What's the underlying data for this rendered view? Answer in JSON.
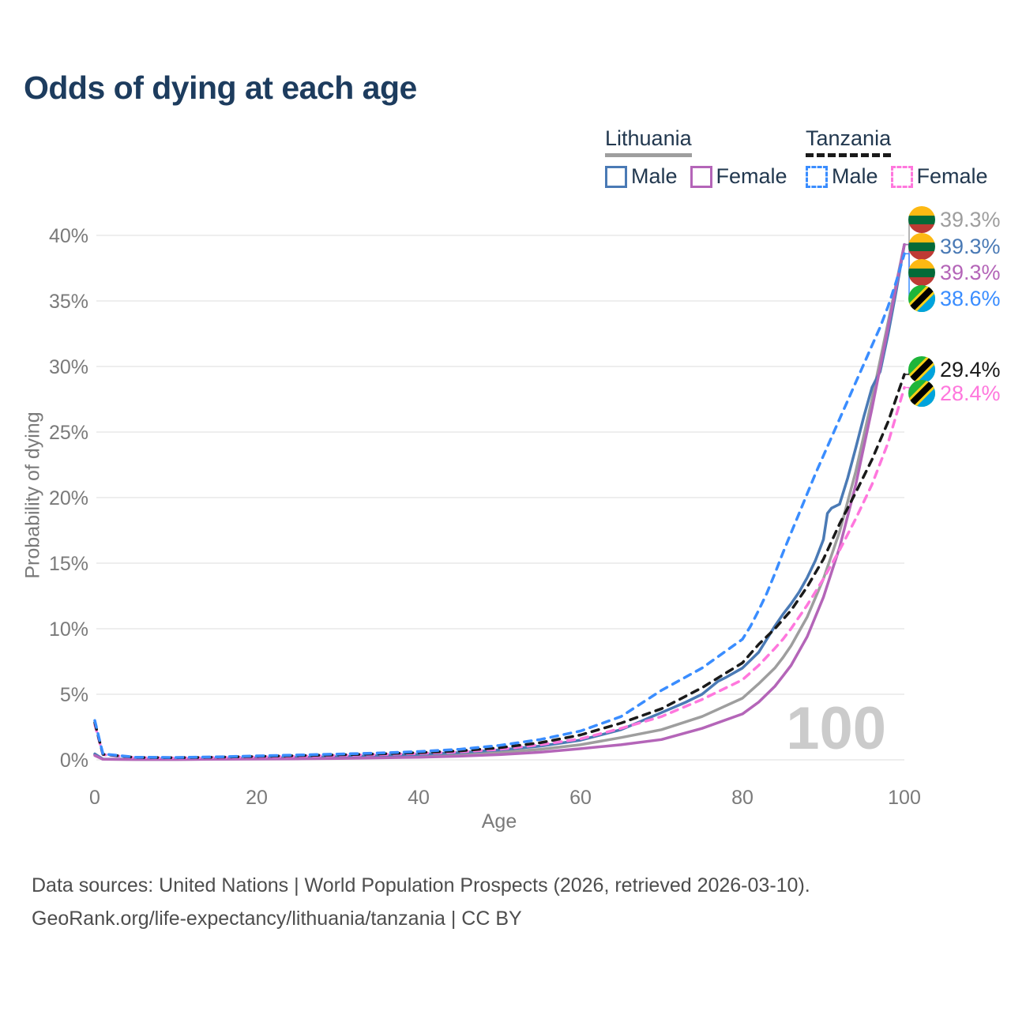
{
  "title": "Odds of dying at each age",
  "watermark": "100",
  "legend": {
    "groups": [
      {
        "country": "Lithuania",
        "line_style": "solid",
        "line_color": "#9e9e9e",
        "items": [
          {
            "label": "Male",
            "color": "#4a7ab5",
            "box_style": "solid"
          },
          {
            "label": "Female",
            "color": "#b465b8",
            "box_style": "solid"
          }
        ]
      },
      {
        "country": "Tanzania",
        "line_style": "dashed",
        "line_color": "#1a1a1a",
        "items": [
          {
            "label": "Male",
            "color": "#3a8dff",
            "box_style": "dashed"
          },
          {
            "label": "Female",
            "color": "#ff77dd",
            "box_style": "dashed"
          }
        ]
      }
    ]
  },
  "end_labels": [
    {
      "value": "39.3%",
      "flag": "lithuania",
      "color": "#9e9e9e"
    },
    {
      "value": "39.3%",
      "flag": "lithuania",
      "color": "#4a7ab5"
    },
    {
      "value": "39.3%",
      "flag": "lithuania",
      "color": "#b465b8"
    },
    {
      "value": "38.6%",
      "flag": "tanzania",
      "color": "#3a8dff"
    },
    {
      "value": "29.4%",
      "flag": "tanzania",
      "color": "#1a1a1a"
    },
    {
      "value": "28.4%",
      "flag": "tanzania",
      "color": "#ff77dd"
    }
  ],
  "footer": {
    "line1": "Data sources: United Nations | World Population Prospects (2026, retrieved 2026-03-10).",
    "line2": "GeoRank.org/life-expectancy/lithuania/tanzania | CC BY"
  },
  "chart_data": {
    "type": "line",
    "title": "Odds of dying at each age",
    "xlabel": "Age",
    "ylabel": "Probability of dying",
    "xlim": [
      0,
      100
    ],
    "ylim_pct": [
      0,
      42
    ],
    "grid": true,
    "legend_position": "top-right",
    "x_ticks": [
      {
        "value": 0,
        "label": "0"
      },
      {
        "value": 20,
        "label": "20"
      },
      {
        "value": 40,
        "label": "40"
      },
      {
        "value": 60,
        "label": "60"
      },
      {
        "value": 80,
        "label": "80"
      },
      {
        "value": 100,
        "label": "100"
      }
    ],
    "y_ticks": [
      {
        "value": 0,
        "label": "0%"
      },
      {
        "value": 5,
        "label": "5%"
      },
      {
        "value": 10,
        "label": "10%"
      },
      {
        "value": 15,
        "label": "15%"
      },
      {
        "value": 20,
        "label": "20%"
      },
      {
        "value": 25,
        "label": "25%"
      },
      {
        "value": 30,
        "label": "30%"
      },
      {
        "value": 35,
        "label": "35%"
      },
      {
        "value": 40,
        "label": "40%"
      }
    ],
    "series": [
      {
        "id": "lithuania-combined",
        "name": "Lithuania (both sexes)",
        "country": "Lithuania",
        "sex": "combined",
        "line_style": "solid",
        "color": "#9e9e9e",
        "end_value_pct": 39.3,
        "end_label_index": 0,
        "points": [
          [
            0,
            0.4
          ],
          [
            1,
            0.05
          ],
          [
            5,
            0.03
          ],
          [
            10,
            0.03
          ],
          [
            15,
            0.055
          ],
          [
            20,
            0.09
          ],
          [
            25,
            0.13
          ],
          [
            30,
            0.17
          ],
          [
            35,
            0.23
          ],
          [
            40,
            0.3
          ],
          [
            45,
            0.41
          ],
          [
            50,
            0.57
          ],
          [
            55,
            0.8
          ],
          [
            60,
            1.15
          ],
          [
            65,
            1.7
          ],
          [
            70,
            2.3
          ],
          [
            75,
            3.3
          ],
          [
            80,
            4.7
          ],
          [
            82,
            5.8
          ],
          [
            84,
            7.0
          ],
          [
            85,
            7.8
          ],
          [
            86,
            8.7
          ],
          [
            88,
            10.9
          ],
          [
            90,
            13.8
          ],
          [
            92,
            17.4
          ],
          [
            94,
            22.0
          ],
          [
            96,
            27.5
          ],
          [
            98,
            33.4
          ],
          [
            100,
            39.3
          ]
        ]
      },
      {
        "id": "lithuania-male",
        "name": "Lithuania Male",
        "country": "Lithuania",
        "sex": "male",
        "line_style": "solid",
        "color": "#4a7ab5",
        "end_value_pct": 39.3,
        "end_label_index": 1,
        "points": [
          [
            0,
            0.45
          ],
          [
            1,
            0.06
          ],
          [
            5,
            0.04
          ],
          [
            10,
            0.04
          ],
          [
            15,
            0.07
          ],
          [
            20,
            0.13
          ],
          [
            25,
            0.18
          ],
          [
            30,
            0.24
          ],
          [
            35,
            0.32
          ],
          [
            40,
            0.42
          ],
          [
            45,
            0.55
          ],
          [
            50,
            0.75
          ],
          [
            55,
            1.05
          ],
          [
            60,
            1.5
          ],
          [
            65,
            2.3
          ],
          [
            70,
            3.6
          ],
          [
            73,
            4.4
          ],
          [
            75,
            5.0
          ],
          [
            77,
            6.0
          ],
          [
            78,
            6.3
          ],
          [
            80,
            7.0
          ],
          [
            81,
            7.6
          ],
          [
            82,
            8.2
          ],
          [
            83,
            9.2
          ],
          [
            84,
            10.2
          ],
          [
            85,
            11.1
          ],
          [
            86,
            11.9
          ],
          [
            87,
            12.8
          ],
          [
            88,
            13.9
          ],
          [
            89,
            15.2
          ],
          [
            90,
            16.8
          ],
          [
            90.5,
            18.8
          ],
          [
            91,
            19.2
          ],
          [
            92,
            19.5
          ],
          [
            93,
            21.5
          ],
          [
            94,
            23.8
          ],
          [
            95,
            26.2
          ],
          [
            96,
            28.4
          ],
          [
            97,
            29.6
          ],
          [
            98,
            32.5
          ],
          [
            99,
            35.8
          ],
          [
            100,
            39.3
          ]
        ]
      },
      {
        "id": "lithuania-female",
        "name": "Lithuania Female",
        "country": "Lithuania",
        "sex": "female",
        "line_style": "solid",
        "color": "#b465b8",
        "end_value_pct": 39.3,
        "end_label_index": 2,
        "points": [
          [
            0,
            0.33
          ],
          [
            1,
            0.04
          ],
          [
            5,
            0.025
          ],
          [
            10,
            0.025
          ],
          [
            15,
            0.04
          ],
          [
            20,
            0.06
          ],
          [
            25,
            0.08
          ],
          [
            30,
            0.11
          ],
          [
            35,
            0.15
          ],
          [
            40,
            0.2
          ],
          [
            45,
            0.28
          ],
          [
            50,
            0.4
          ],
          [
            55,
            0.58
          ],
          [
            60,
            0.85
          ],
          [
            65,
            1.15
          ],
          [
            70,
            1.55
          ],
          [
            75,
            2.4
          ],
          [
            80,
            3.5
          ],
          [
            82,
            4.4
          ],
          [
            84,
            5.6
          ],
          [
            85,
            6.4
          ],
          [
            86,
            7.2
          ],
          [
            88,
            9.4
          ],
          [
            90,
            12.4
          ],
          [
            92,
            16.2
          ],
          [
            94,
            21.0
          ],
          [
            96,
            26.8
          ],
          [
            98,
            33.0
          ],
          [
            100,
            39.3
          ]
        ]
      },
      {
        "id": "tanzania-female",
        "name": "Tanzania Female",
        "country": "Tanzania",
        "sex": "female",
        "line_style": "dashed",
        "color": "#ff77dd",
        "end_value_pct": 28.4,
        "end_label_index": 5,
        "points": [
          [
            0,
            2.7
          ],
          [
            1,
            0.4
          ],
          [
            5,
            0.17
          ],
          [
            10,
            0.15
          ],
          [
            15,
            0.18
          ],
          [
            20,
            0.22
          ],
          [
            25,
            0.27
          ],
          [
            30,
            0.33
          ],
          [
            35,
            0.4
          ],
          [
            40,
            0.48
          ],
          [
            45,
            0.6
          ],
          [
            50,
            0.8
          ],
          [
            55,
            1.15
          ],
          [
            60,
            1.6
          ],
          [
            65,
            2.4
          ],
          [
            70,
            3.3
          ],
          [
            75,
            4.6
          ],
          [
            80,
            6.1
          ],
          [
            82,
            7.2
          ],
          [
            84,
            8.5
          ],
          [
            85,
            9.2
          ],
          [
            86,
            10.0
          ],
          [
            88,
            11.8
          ],
          [
            90,
            13.8
          ],
          [
            92,
            16.0
          ],
          [
            94,
            18.4
          ],
          [
            96,
            21.0
          ],
          [
            98,
            24.2
          ],
          [
            100,
            28.4
          ]
        ]
      },
      {
        "id": "tanzania-combined",
        "name": "Tanzania (both sexes)",
        "country": "Tanzania",
        "sex": "combined",
        "line_style": "dashed",
        "color": "#1a1a1a",
        "end_value_pct": 29.4,
        "end_label_index": 4,
        "points": [
          [
            0,
            2.85
          ],
          [
            1,
            0.42
          ],
          [
            5,
            0.18
          ],
          [
            10,
            0.16
          ],
          [
            15,
            0.2
          ],
          [
            20,
            0.26
          ],
          [
            25,
            0.32
          ],
          [
            30,
            0.38
          ],
          [
            35,
            0.45
          ],
          [
            40,
            0.55
          ],
          [
            45,
            0.68
          ],
          [
            50,
            0.92
          ],
          [
            55,
            1.3
          ],
          [
            60,
            1.9
          ],
          [
            65,
            2.8
          ],
          [
            70,
            3.9
          ],
          [
            75,
            5.5
          ],
          [
            80,
            7.4
          ],
          [
            82,
            8.8
          ],
          [
            84,
            10.0
          ],
          [
            85,
            10.7
          ],
          [
            86,
            11.4
          ],
          [
            88,
            13.2
          ],
          [
            90,
            15.3
          ],
          [
            92,
            18.0
          ],
          [
            94,
            20.4
          ],
          [
            96,
            22.9
          ],
          [
            98,
            25.8
          ],
          [
            100,
            29.4
          ]
        ]
      },
      {
        "id": "tanzania-male",
        "name": "Tanzania Male",
        "country": "Tanzania",
        "sex": "male",
        "line_style": "dashed",
        "color": "#3a8dff",
        "end_value_pct": 38.6,
        "end_label_index": 3,
        "points": [
          [
            0,
            3.0
          ],
          [
            1,
            0.45
          ],
          [
            5,
            0.2
          ],
          [
            10,
            0.18
          ],
          [
            15,
            0.22
          ],
          [
            20,
            0.3
          ],
          [
            25,
            0.37
          ],
          [
            30,
            0.44
          ],
          [
            35,
            0.52
          ],
          [
            40,
            0.63
          ],
          [
            45,
            0.8
          ],
          [
            50,
            1.1
          ],
          [
            55,
            1.55
          ],
          [
            60,
            2.2
          ],
          [
            65,
            3.3
          ],
          [
            70,
            5.3
          ],
          [
            75,
            7.0
          ],
          [
            80,
            9.2
          ],
          [
            81,
            10.2
          ],
          [
            82,
            11.4
          ],
          [
            83,
            12.7
          ],
          [
            84,
            14.2
          ],
          [
            85,
            15.8
          ],
          [
            86,
            17.3
          ],
          [
            87,
            18.8
          ],
          [
            88,
            20.3
          ],
          [
            89,
            21.8
          ],
          [
            90,
            23.2
          ],
          [
            91,
            24.6
          ],
          [
            92,
            26.0
          ],
          [
            93,
            27.4
          ],
          [
            94,
            28.8
          ],
          [
            95,
            30.2
          ],
          [
            96,
            31.6
          ],
          [
            97,
            33.0
          ],
          [
            98,
            34.6
          ],
          [
            99,
            36.5
          ],
          [
            100,
            38.6
          ]
        ]
      }
    ]
  }
}
